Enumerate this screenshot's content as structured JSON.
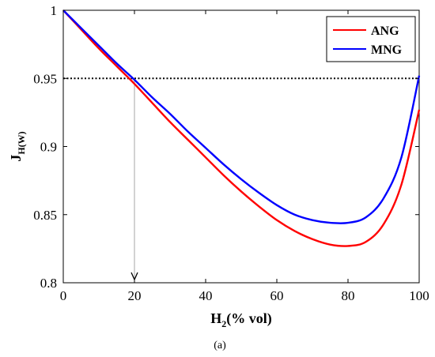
{
  "chart_data": {
    "type": "line",
    "xlabel": {
      "main": "H",
      "sub": "2",
      "rest": "(% vol)"
    },
    "ylabel": {
      "main": "J",
      "sub": "H(W)"
    },
    "xlim": [
      0,
      100
    ],
    "ylim": [
      0.8,
      1.0
    ],
    "xticks": [
      0,
      20,
      40,
      60,
      80,
      100
    ],
    "xtick_labels": [
      "0",
      "20",
      "40",
      "60",
      "80",
      "100"
    ],
    "yticks": [
      0.8,
      0.85,
      0.9,
      0.95,
      1.0
    ],
    "ytick_labels": [
      "0.8",
      "0.85",
      "0.9",
      "0.95",
      "1"
    ],
    "grid": false,
    "legend_position": "top-right",
    "series": [
      {
        "name": "ANG",
        "color": "#ff0000",
        "x": [
          0,
          5,
          10,
          15,
          20,
          25,
          30,
          35,
          40,
          45,
          50,
          55,
          60,
          65,
          70,
          75,
          80,
          85,
          90,
          95,
          100
        ],
        "y": [
          1.0,
          0.986,
          0.972,
          0.959,
          0.946,
          0.932,
          0.918,
          0.905,
          0.892,
          0.879,
          0.867,
          0.856,
          0.846,
          0.838,
          0.832,
          0.828,
          0.827,
          0.83,
          0.843,
          0.872,
          0.927
        ]
      },
      {
        "name": "MNG",
        "color": "#0000ff",
        "x": [
          0,
          5,
          10,
          15,
          20,
          25,
          30,
          35,
          40,
          45,
          50,
          55,
          60,
          65,
          70,
          75,
          80,
          85,
          90,
          95,
          100
        ],
        "y": [
          1.0,
          0.987,
          0.974,
          0.961,
          0.949,
          0.936,
          0.924,
          0.911,
          0.899,
          0.887,
          0.876,
          0.866,
          0.857,
          0.85,
          0.846,
          0.844,
          0.844,
          0.848,
          0.862,
          0.892,
          0.952
        ]
      }
    ],
    "reference_lines": [
      {
        "orientation": "horizontal",
        "value": 0.95,
        "style": "dotted",
        "color": "#000000"
      },
      {
        "orientation": "vertical",
        "value": 20,
        "style": "solid",
        "color": "#a6a6a6",
        "arrow": true
      }
    ]
  },
  "caption": "(a)"
}
